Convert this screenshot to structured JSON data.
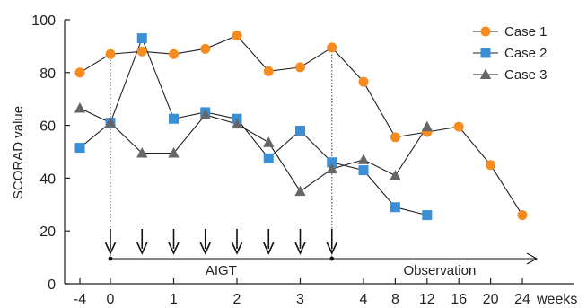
{
  "chart_data": {
    "type": "line",
    "ylabel": "SCORAD value",
    "xlabel": "weeks",
    "ylim": [
      0,
      100
    ],
    "yticks": [
      0,
      20,
      40,
      60,
      80,
      100
    ],
    "x_tick_labels": [
      "-4",
      "0",
      "1",
      "2",
      "3",
      "4",
      "8",
      "12",
      "16",
      "20",
      "24"
    ],
    "grid": false,
    "legend_position": "top-right",
    "series": [
      {
        "name": "Case 1",
        "marker": "circle",
        "color": "#f68b1f",
        "values": [
          {
            "x": -4,
            "y": 80
          },
          {
            "x": 0,
            "y": 87
          },
          {
            "x": 0.5,
            "y": 88
          },
          {
            "x": 1,
            "y": 87
          },
          {
            "x": 1.5,
            "y": 89
          },
          {
            "x": 2,
            "y": 94
          },
          {
            "x": 2.5,
            "y": 80.5
          },
          {
            "x": 3,
            "y": 82
          },
          {
            "x": 3.5,
            "y": 89.5
          },
          {
            "x": 4,
            "y": 76.5
          },
          {
            "x": 8,
            "y": 55.5
          },
          {
            "x": 12,
            "y": 57.5
          },
          {
            "x": 16,
            "y": 59.5
          },
          {
            "x": 20,
            "y": 45
          },
          {
            "x": 24,
            "y": 26
          }
        ]
      },
      {
        "name": "Case 2",
        "marker": "square",
        "color": "#3b8fd6",
        "values": [
          {
            "x": -4,
            "y": 51.5
          },
          {
            "x": 0,
            "y": 61
          },
          {
            "x": 0.5,
            "y": 93
          },
          {
            "x": 1,
            "y": 62.5
          },
          {
            "x": 1.5,
            "y": 65
          },
          {
            "x": 2,
            "y": 62.5
          },
          {
            "x": 2.5,
            "y": 47.5
          },
          {
            "x": 3,
            "y": 58
          },
          {
            "x": 3.5,
            "y": 46
          },
          {
            "x": 4,
            "y": 43
          },
          {
            "x": 8,
            "y": 29
          },
          {
            "x": 12,
            "y": 26
          }
        ]
      },
      {
        "name": "Case 3",
        "marker": "triangle",
        "color": "#666666",
        "values": [
          {
            "x": -4,
            "y": 66.5
          },
          {
            "x": 0,
            "y": 61
          },
          {
            "x": 0.5,
            "y": 49.5
          },
          {
            "x": 1,
            "y": 49.5
          },
          {
            "x": 1.5,
            "y": 64
          },
          {
            "x": 2,
            "y": 60.5
          },
          {
            "x": 2.5,
            "y": 53.5
          },
          {
            "x": 3,
            "y": 35
          },
          {
            "x": 3.5,
            "y": 43.5
          },
          {
            "x": 4,
            "y": 47
          },
          {
            "x": 8,
            "y": 41
          },
          {
            "x": 12,
            "y": 59.5
          }
        ]
      }
    ],
    "annotations": {
      "aigt_label": "AIGT",
      "observation_label": "Observation",
      "aigt_start_week": 0,
      "aigt_end_week": 3.5,
      "dose_arrow_weeks": [
        0,
        0.5,
        1,
        1.5,
        2,
        2.5,
        3,
        3.5
      ],
      "observation_end_week": 24
    }
  }
}
